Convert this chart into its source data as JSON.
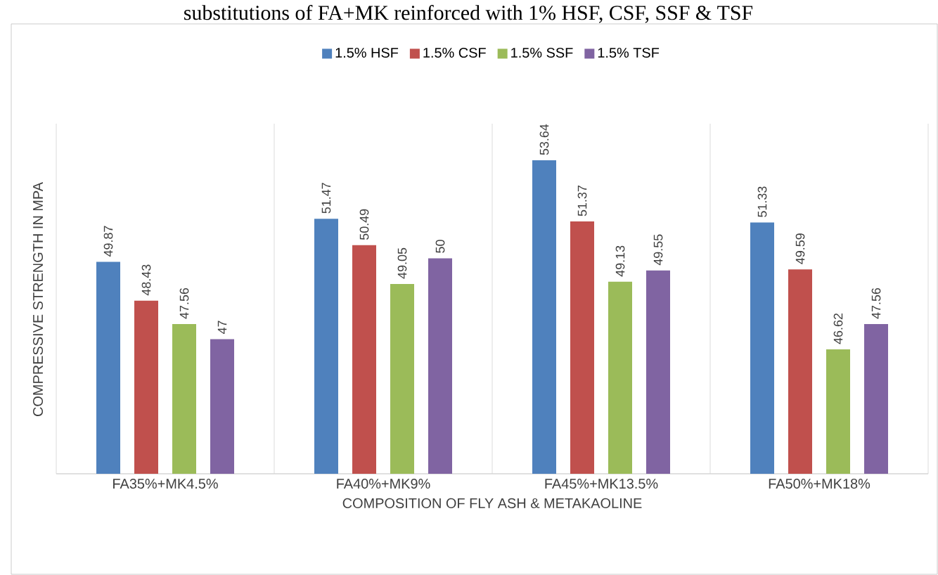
{
  "chart_data": {
    "type": "bar",
    "title": "substitutions of FA+MK reinforced with 1% HSF, CSF, SSF & TSF",
    "xlabel": "COMPOSITION OF FLY ASH & METAKAOLINE",
    "ylabel": "COMPRESSIVE STRENGTH IN MPA",
    "categories": [
      "FA35%+MK4.5%",
      "FA40%+MK9%",
      "FA45%+MK13.5%",
      "FA50%+MK18%"
    ],
    "series": [
      {
        "name": "1.5% HSF",
        "color": "#4f81bd",
        "values": [
          49.87,
          51.47,
          53.64,
          51.33
        ]
      },
      {
        "name": "1.5% CSF",
        "color": "#c0504d",
        "values": [
          48.43,
          50.49,
          51.37,
          49.59
        ]
      },
      {
        "name": "1.5% SSF",
        "color": "#9bbb59",
        "values": [
          47.56,
          49.05,
          49.13,
          46.62
        ]
      },
      {
        "name": "1.5% TSF",
        "color": "#8064a2",
        "values": [
          47,
          50,
          49.55,
          47.56
        ]
      }
    ],
    "ylim": [
      42,
      55
    ],
    "tick_labels": "x",
    "data_labels": true,
    "legend": "top"
  }
}
